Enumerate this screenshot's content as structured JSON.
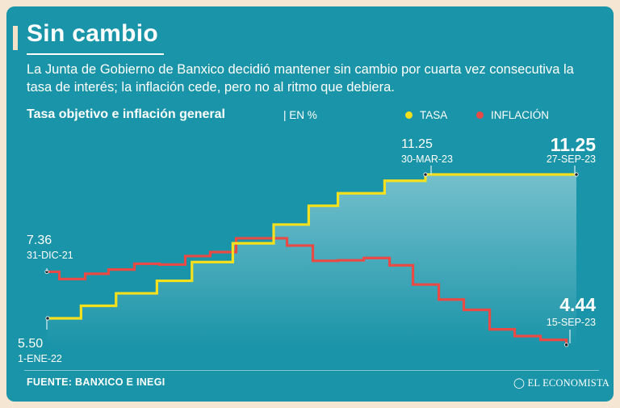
{
  "header": {
    "title": "Sin cambio",
    "subtitle": "La Junta de Gobierno de Banxico decidió mantener sin cambio por cuarta vez consecutiva la tasa de interés; la inflación cede, pero no al ritmo que debiera."
  },
  "chart_header": {
    "title": "Tasa objetivo e inflación general",
    "unit": "| EN %"
  },
  "legend": [
    {
      "label": "TASA",
      "color": "#f4e01c"
    },
    {
      "label": "INFLACIÓN",
      "color": "#e84b45"
    }
  ],
  "annotations": {
    "infl_start_value": "7.36",
    "infl_start_date": "31-DIC-21",
    "tasa_start_value": "5.50",
    "tasa_start_date": "1-ENE-22",
    "tasa_peak_value": "11.25",
    "tasa_peak_date": "30-MAR-23",
    "tasa_end_value": "11.25",
    "tasa_end_date": "27-SEP-23",
    "infl_end_value": "4.44",
    "infl_end_date": "15-SEP-23"
  },
  "footer": {
    "source": "FUENTE: BANXICO E INEGI",
    "brand": "EL ECONOMISTA"
  },
  "colors": {
    "background": "#1a94a8",
    "tasa": "#f4e01c",
    "inflacion": "#e84b45",
    "area_fill": "#bfe3ea"
  },
  "chart_data": {
    "type": "line",
    "x_range": [
      "2021-12-31",
      "2023-09-27"
    ],
    "ylim": [
      4,
      12
    ],
    "grid": false,
    "legend_position": "top-right",
    "step": true,
    "series": [
      {
        "name": "TASA",
        "color": "#f4e01c",
        "x": [
          "2022-01-01",
          "2022-02-10",
          "2022-03-24",
          "2022-05-12",
          "2022-06-23",
          "2022-08-11",
          "2022-09-29",
          "2022-11-10",
          "2022-12-15",
          "2023-02-09",
          "2023-03-30",
          "2023-09-27"
        ],
        "y": [
          5.5,
          6.0,
          6.5,
          7.0,
          7.75,
          8.5,
          9.25,
          10.0,
          10.5,
          11.0,
          11.25,
          11.25
        ]
      },
      {
        "name": "INFLACIÓN",
        "color": "#e84b45",
        "x": [
          "2021-12-31",
          "2022-01-15",
          "2022-02-15",
          "2022-03-15",
          "2022-04-15",
          "2022-05-15",
          "2022-06-15",
          "2022-07-15",
          "2022-08-15",
          "2022-09-15",
          "2022-10-15",
          "2022-11-15",
          "2022-12-15",
          "2023-01-15",
          "2023-02-15",
          "2023-03-15",
          "2023-04-15",
          "2023-05-15",
          "2023-06-15",
          "2023-07-15",
          "2023-08-15",
          "2023-09-15"
        ],
        "y": [
          7.36,
          7.07,
          7.28,
          7.45,
          7.68,
          7.65,
          7.99,
          8.15,
          8.7,
          8.7,
          8.41,
          7.8,
          7.82,
          7.91,
          7.62,
          6.85,
          6.25,
          5.84,
          5.06,
          4.79,
          4.64,
          4.44
        ]
      }
    ]
  }
}
